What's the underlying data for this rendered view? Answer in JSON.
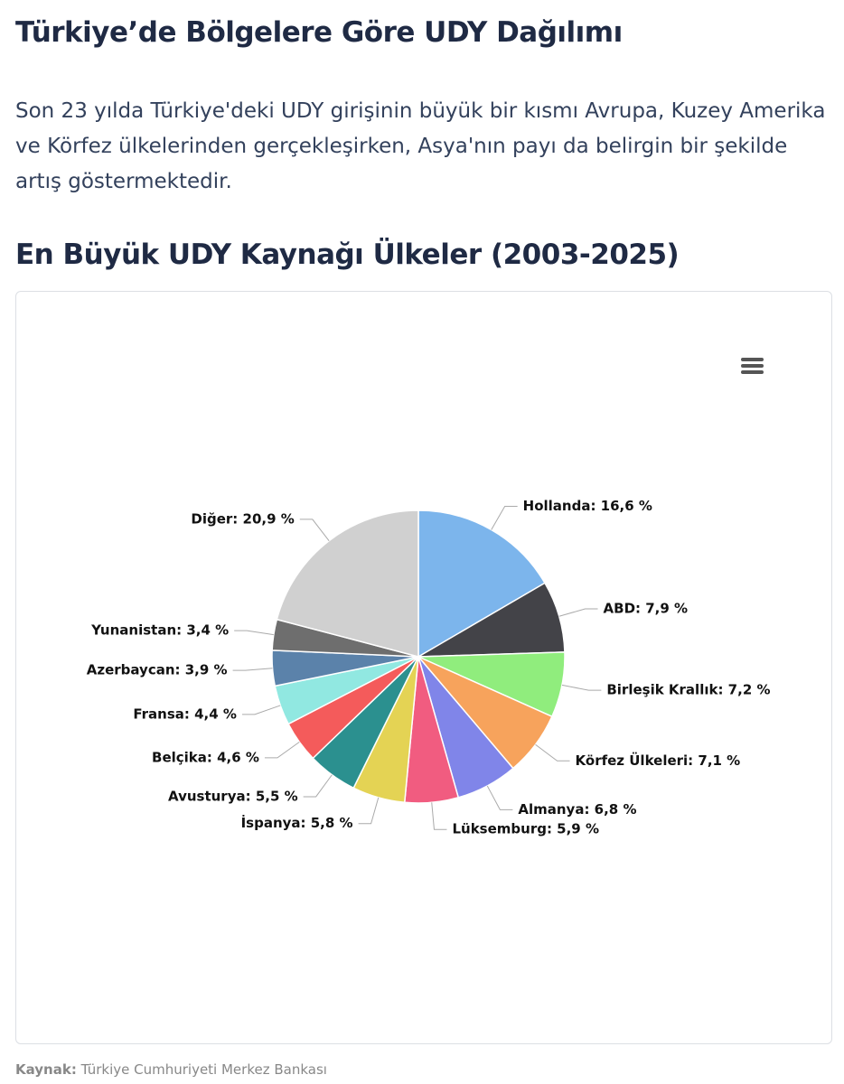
{
  "header": {
    "title": "Türkiye’de Bölgelere Göre UDY Dağılımı",
    "text": "Son 23 yılda Türkiye'deki UDY girişinin büyük bir kısmı Avrupa, Kuzey Amerika ve Körfez ülkelerinden gerçekleşirken, Asya'nın payı da belirgin bir şekilde artış göstermektedir."
  },
  "chart_data": {
    "type": "pie",
    "title": "En Büyük UDY Kaynağı Ülkeler (2003-2025)",
    "values": [
      16.6,
      7.9,
      7.2,
      7.1,
      6.8,
      5.9,
      5.8,
      5.5,
      4.6,
      4.4,
      3.9,
      3.4,
      20.9
    ],
    "value_labels": [
      "Hollanda: 16,6 %",
      "ABD: 7,9 %",
      "Birleşik Krallık: 7,2 %",
      "Körfez Ülkeleri: 7,1 %",
      "Almanya: 6,8 %",
      "Lüksemburg: 5,9 %",
      "İspanya: 5,8 %",
      "Avusturya: 5,5 %",
      "Belçika: 4,6 %",
      "Fransa: 4,4 %",
      "Azerbaycan: 3,9 %",
      "Yunanistan: 3,4 %",
      "Diğer: 20,9 %"
    ],
    "colors": [
      "#7cb5ec",
      "#434348",
      "#90ed7d",
      "#f7a35c",
      "#8085e9",
      "#f15c80",
      "#e4d354",
      "#2b908f",
      "#f45b5b",
      "#91e8e1",
      "#5b82aa",
      "#6e6e6e",
      "#d0d0d0"
    ]
  },
  "source": {
    "label": "Kaynak:",
    "text": "Türkiye Cumhuriyeti Merkez Bankası"
  }
}
